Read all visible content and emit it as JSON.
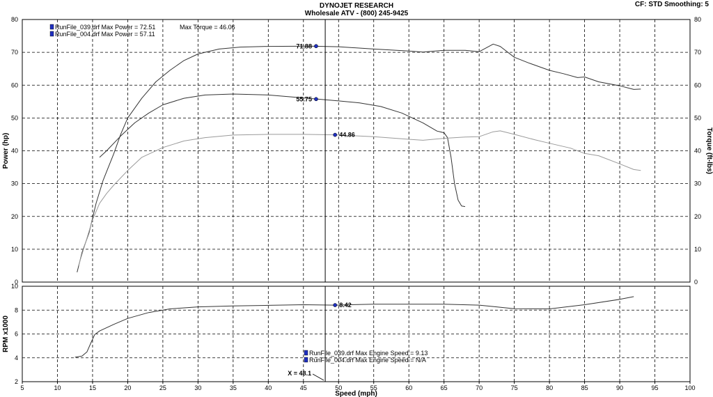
{
  "header": {
    "title": "DYNOJET RESEARCH",
    "subtitle": "Wholesale ATV - (800) 245-9425",
    "settings": "CF: STD  Smoothing: 5"
  },
  "chart_data": [
    {
      "type": "line",
      "panel": "power-torque",
      "xlabel": "Speed (mph)",
      "ylabel": "Power (hp)",
      "ylabel_right": "Torque (ft-lbs)",
      "xlim": [
        5,
        100
      ],
      "ylim": [
        0,
        80
      ],
      "ylim_right": [
        0,
        80
      ],
      "x_ticks": [
        5,
        10,
        15,
        20,
        25,
        30,
        35,
        40,
        45,
        50,
        55,
        60,
        65,
        70,
        75,
        80,
        85,
        90,
        95,
        100
      ],
      "y_ticks": [
        0,
        10,
        20,
        30,
        40,
        50,
        60,
        70,
        80
      ],
      "grid": true,
      "legend": [
        {
          "label": "RunFile_039.drf Max Power = 72.51",
          "color": "#1f2fbf"
        },
        {
          "label": "RunFile_004.drf Max Power = 57.11",
          "color": "#1f2fbf"
        }
      ],
      "legend_extra": "Max Torque = 46.06",
      "cursor_x": 48.1,
      "series": [
        {
          "key": "power_039",
          "color": "#333333",
          "points": [
            [
              12.8,
              3
            ],
            [
              13.5,
              9
            ],
            [
              14.5,
              15
            ],
            [
              15.5,
              24
            ],
            [
              16.5,
              31
            ],
            [
              18,
              39
            ],
            [
              19,
              45
            ],
            [
              20,
              50
            ],
            [
              22,
              56
            ],
            [
              24,
              61
            ],
            [
              26,
              64.5
            ],
            [
              28,
              67.5
            ],
            [
              30,
              69.5
            ],
            [
              33,
              71
            ],
            [
              36,
              71.6
            ],
            [
              40,
              71.8
            ],
            [
              46,
              71.9
            ],
            [
              50,
              71.7
            ],
            [
              55,
              71
            ],
            [
              60,
              70.4
            ],
            [
              62,
              70.1
            ],
            [
              65,
              70.6
            ],
            [
              68,
              70.6
            ],
            [
              70,
              70.2
            ],
            [
              72,
              72.5
            ],
            [
              73,
              71.8
            ],
            [
              75,
              68.5
            ],
            [
              77,
              66.8
            ],
            [
              80,
              64.5
            ],
            [
              82,
              63.5
            ],
            [
              84,
              62.3
            ],
            [
              85,
              62.5
            ],
            [
              87,
              61
            ],
            [
              90,
              59.8
            ],
            [
              92,
              58.7
            ],
            [
              93,
              58.8
            ]
          ],
          "marker": {
            "x": 46.8,
            "y": 71.88,
            "label": "71.88"
          }
        },
        {
          "key": "power_004",
          "color": "#333333",
          "points": [
            [
              16,
              38
            ],
            [
              17,
              40
            ],
            [
              19,
              44.5
            ],
            [
              21,
              48.5
            ],
            [
              23,
              51.5
            ],
            [
              25,
              54
            ],
            [
              28,
              56
            ],
            [
              31,
              57
            ],
            [
              35,
              57.3
            ],
            [
              40,
              57
            ],
            [
              44,
              56.3
            ],
            [
              47,
              55.75
            ],
            [
              50,
              55.2
            ],
            [
              53,
              54.6
            ],
            [
              56,
              53.5
            ],
            [
              59,
              51.5
            ],
            [
              62,
              48.5
            ],
            [
              64,
              46
            ],
            [
              65,
              45.5
            ],
            [
              65.5,
              44
            ],
            [
              66,
              38
            ],
            [
              66.5,
              30
            ],
            [
              67,
              25
            ],
            [
              67.5,
              23.2
            ],
            [
              68,
              23
            ]
          ],
          "marker": {
            "x": 46.8,
            "y": 55.75,
            "label": "55.75"
          }
        },
        {
          "key": "torque_039",
          "color": "#9a9a9a",
          "points": [
            [
              13,
              5
            ],
            [
              14,
              12
            ],
            [
              15,
              19
            ],
            [
              16,
              24
            ],
            [
              17,
              27
            ],
            [
              18,
              29.5
            ],
            [
              20,
              34
            ],
            [
              22,
              38
            ],
            [
              25,
              41
            ],
            [
              28,
              43
            ],
            [
              31,
              44
            ],
            [
              35,
              44.8
            ],
            [
              40,
              45
            ],
            [
              45,
              45
            ],
            [
              49.5,
              44.86
            ],
            [
              55,
              44.3
            ],
            [
              60,
              43.5
            ],
            [
              62,
              43.2
            ],
            [
              65,
              43.8
            ],
            [
              68,
              44.2
            ],
            [
              70,
              44.3
            ],
            [
              72,
              45.8
            ],
            [
              73,
              46.06
            ],
            [
              75,
              45
            ],
            [
              78,
              43.3
            ],
            [
              80,
              42.3
            ],
            [
              83,
              40.8
            ],
            [
              85,
              39.2
            ],
            [
              87,
              38.5
            ],
            [
              90,
              36
            ],
            [
              92,
              34.3
            ],
            [
              93,
              34
            ]
          ],
          "marker": {
            "x": 49.5,
            "y": 44.86,
            "label": "44.86"
          }
        }
      ]
    },
    {
      "type": "line",
      "panel": "rpm",
      "xlabel": "Speed (mph)",
      "ylabel": "RPM x1000",
      "xlim": [
        5,
        100
      ],
      "ylim": [
        2,
        10
      ],
      "y_ticks": [
        2,
        4,
        6,
        8,
        10
      ],
      "grid": true,
      "legend": [
        {
          "label": "RunFile_039.drf Max Engine Speed = 9.13",
          "color": "#1f2fbf"
        },
        {
          "label": "RunFile_004.drf Max Engine Speed = N/A",
          "color": "#1f2fbf"
        }
      ],
      "cursor_label": "X = 48.1",
      "cursor_x": 48.1,
      "series": [
        {
          "key": "rpm_039",
          "color": "#333333",
          "points": [
            [
              12.5,
              4.05
            ],
            [
              13.5,
              4.15
            ],
            [
              14.2,
              4.5
            ],
            [
              14.8,
              5.3
            ],
            [
              15.3,
              5.95
            ],
            [
              16,
              6.25
            ],
            [
              18,
              6.8
            ],
            [
              20,
              7.3
            ],
            [
              23,
              7.8
            ],
            [
              26,
              8.1
            ],
            [
              30,
              8.27
            ],
            [
              35,
              8.35
            ],
            [
              40,
              8.4
            ],
            [
              45,
              8.45
            ],
            [
              49.5,
              8.42
            ],
            [
              55,
              8.5
            ],
            [
              60,
              8.5
            ],
            [
              65,
              8.5
            ],
            [
              70,
              8.42
            ],
            [
              72,
              8.3
            ],
            [
              75,
              8.12
            ],
            [
              80,
              8.1
            ],
            [
              85,
              8.45
            ],
            [
              90,
              8.9
            ],
            [
              92,
              9.13
            ]
          ],
          "marker": {
            "x": 49.5,
            "y": 8.42,
            "label": "8.42"
          }
        }
      ]
    }
  ]
}
